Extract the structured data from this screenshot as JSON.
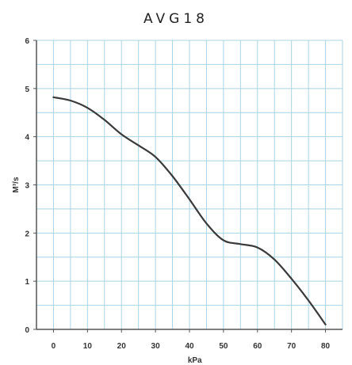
{
  "chart_data": {
    "type": "line",
    "title": "AVG18",
    "xlabel": "kPa",
    "ylabel": "M³/s",
    "xlim": [
      -5,
      85
    ],
    "ylim": [
      0,
      6
    ],
    "x_ticks": [
      "0",
      "10",
      "20",
      "30",
      "40",
      "50",
      "60",
      "70",
      "80"
    ],
    "y_ticks": [
      "0",
      "1",
      "2",
      "3",
      "4",
      "5",
      "6"
    ],
    "grid": true,
    "colors": {
      "line": "#3a3a3a",
      "grid": "#a9d4e2",
      "axis": "#555555",
      "background": "#ffffff"
    },
    "series": [
      {
        "x": [
          0,
          5,
          10,
          15,
          20,
          25,
          30,
          35,
          40,
          45,
          50,
          55,
          60,
          65,
          70,
          75,
          80
        ],
        "y": [
          4.82,
          4.75,
          4.6,
          4.35,
          4.05,
          3.82,
          3.58,
          3.18,
          2.7,
          2.2,
          1.85,
          1.77,
          1.7,
          1.45,
          1.05,
          0.6,
          0.1
        ]
      }
    ]
  }
}
